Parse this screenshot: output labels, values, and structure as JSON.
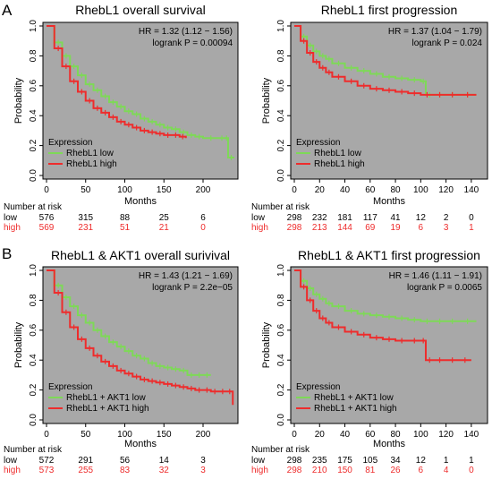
{
  "panels": [
    {
      "letter": "A"
    },
    {
      "letter": "B"
    }
  ],
  "colors": {
    "low": "#7ed957",
    "high": "#ee2c2c",
    "plot_bg": "#a8a8a8"
  },
  "chart_data": [
    {
      "type": "line",
      "title": "RhebL1 overall survival",
      "xlabel": "Months",
      "ylabel": "Probability",
      "xlim": [
        0,
        240
      ],
      "ylim": [
        0,
        1
      ],
      "xticks": [
        0,
        50,
        100,
        150,
        200
      ],
      "yticks": [
        0.0,
        0.2,
        0.4,
        0.6,
        0.8,
        1.0
      ],
      "hr_text": "HR = 1.32 (1.12 − 1.56)",
      "logrank_text": "logrank P = 0.00094",
      "legend_title": "Expression",
      "series": [
        {
          "name": "RhebL1 low",
          "color": "#7ed957",
          "x": [
            0,
            10,
            20,
            30,
            40,
            50,
            60,
            70,
            80,
            90,
            100,
            110,
            120,
            130,
            140,
            150,
            160,
            170,
            180,
            190,
            200,
            220,
            228,
            232,
            240
          ],
          "y": [
            1.0,
            0.89,
            0.8,
            0.73,
            0.67,
            0.61,
            0.57,
            0.53,
            0.49,
            0.46,
            0.43,
            0.41,
            0.38,
            0.36,
            0.34,
            0.32,
            0.31,
            0.29,
            0.27,
            0.26,
            0.25,
            0.25,
            0.25,
            0.12,
            0.12
          ]
        },
        {
          "name": "RhebL1 high",
          "color": "#ee2c2c",
          "x": [
            0,
            10,
            20,
            30,
            40,
            50,
            60,
            70,
            80,
            90,
            100,
            110,
            120,
            130,
            140,
            150,
            160,
            170,
            178
          ],
          "y": [
            1.0,
            0.85,
            0.73,
            0.63,
            0.56,
            0.5,
            0.45,
            0.42,
            0.39,
            0.36,
            0.34,
            0.32,
            0.3,
            0.29,
            0.28,
            0.27,
            0.27,
            0.26,
            0.25
          ]
        }
      ],
      "risk_table": {
        "header": "Number at risk",
        "rows": [
          {
            "label": "low",
            "color": "#000000",
            "values": [
              "576",
              "315",
              "88",
              "25",
              "6"
            ]
          },
          {
            "label": "high",
            "color": "#ee2c2c",
            "values": [
              "569",
              "231",
              "51",
              "21",
              "0"
            ]
          }
        ],
        "times": [
          0,
          50,
          100,
          150,
          200
        ]
      }
    },
    {
      "type": "line",
      "title": "RhebL1 first progression",
      "xlabel": "Months",
      "ylabel": "Probability",
      "xlim": [
        0,
        150
      ],
      "ylim": [
        0,
        1
      ],
      "xticks": [
        0,
        20,
        40,
        60,
        80,
        100,
        120,
        140
      ],
      "yticks": [
        0.0,
        0.2,
        0.4,
        0.6,
        0.8,
        1.0
      ],
      "hr_text": "HR = 1.37 (1.04 − 1.79)",
      "logrank_text": "logrank P = 0.024",
      "legend_title": "Expression",
      "series": [
        {
          "name": "RhebL1 low",
          "color": "#7ed957",
          "x": [
            0,
            5,
            10,
            15,
            20,
            25,
            30,
            40,
            50,
            60,
            70,
            80,
            90,
            100,
            104,
            110,
            120,
            130,
            144
          ],
          "y": [
            1.0,
            0.93,
            0.87,
            0.83,
            0.8,
            0.78,
            0.75,
            0.72,
            0.7,
            0.68,
            0.66,
            0.65,
            0.64,
            0.63,
            0.54,
            0.54,
            0.54,
            0.54,
            0.54
          ]
        },
        {
          "name": "RhebL1 high",
          "color": "#ee2c2c",
          "x": [
            0,
            5,
            10,
            15,
            20,
            25,
            30,
            40,
            50,
            60,
            70,
            80,
            90,
            100,
            110,
            120,
            130,
            144
          ],
          "y": [
            1.0,
            0.9,
            0.82,
            0.76,
            0.72,
            0.69,
            0.66,
            0.63,
            0.6,
            0.58,
            0.57,
            0.56,
            0.55,
            0.54,
            0.54,
            0.54,
            0.54,
            0.54
          ]
        }
      ],
      "risk_table": {
        "header": "Number at risk",
        "rows": [
          {
            "label": "low",
            "color": "#000000",
            "values": [
              "298",
              "232",
              "181",
              "117",
              "41",
              "12",
              "2",
              "0"
            ]
          },
          {
            "label": "high",
            "color": "#ee2c2c",
            "values": [
              "298",
              "213",
              "144",
              "69",
              "19",
              "6",
              "3",
              "1"
            ]
          }
        ],
        "times": [
          0,
          20,
          40,
          60,
          80,
          100,
          120,
          140
        ]
      }
    },
    {
      "type": "line",
      "title": "RhebL1 & AKT1 overall surivival",
      "xlabel": "Months",
      "ylabel": "Probability",
      "xlim": [
        0,
        240
      ],
      "ylim": [
        0,
        1
      ],
      "xticks": [
        0,
        50,
        100,
        150,
        200
      ],
      "yticks": [
        0.0,
        0.2,
        0.4,
        0.6,
        0.8,
        1.0
      ],
      "hr_text": "HR = 1.43 (1.21 − 1.69)",
      "logrank_text": "logrank P = 2.2e−05",
      "legend_title": "Expression",
      "series": [
        {
          "name": "RhebL1 + AKT1 low",
          "color": "#7ed957",
          "x": [
            0,
            10,
            20,
            30,
            40,
            50,
            60,
            70,
            80,
            90,
            100,
            110,
            120,
            130,
            140,
            150,
            160,
            170,
            180,
            190,
            200,
            210
          ],
          "y": [
            1.0,
            0.9,
            0.82,
            0.76,
            0.7,
            0.65,
            0.6,
            0.56,
            0.52,
            0.49,
            0.46,
            0.43,
            0.41,
            0.38,
            0.36,
            0.35,
            0.34,
            0.33,
            0.3,
            0.3,
            0.3,
            0.3
          ]
        },
        {
          "name": "RhebL1 + AKT1 high",
          "color": "#ee2c2c",
          "x": [
            0,
            10,
            20,
            30,
            40,
            50,
            60,
            70,
            80,
            90,
            100,
            110,
            120,
            130,
            140,
            150,
            160,
            170,
            180,
            190,
            200,
            210,
            220,
            230,
            238
          ],
          "y": [
            1.0,
            0.85,
            0.72,
            0.62,
            0.54,
            0.48,
            0.43,
            0.39,
            0.36,
            0.33,
            0.31,
            0.29,
            0.27,
            0.26,
            0.25,
            0.24,
            0.23,
            0.22,
            0.21,
            0.2,
            0.2,
            0.19,
            0.19,
            0.19,
            0.1
          ]
        }
      ],
      "risk_table": {
        "header": "Number at risk",
        "rows": [
          {
            "label": "low",
            "color": "#000000",
            "values": [
              "572",
              "291",
              "56",
              "14",
              "3"
            ]
          },
          {
            "label": "high",
            "color": "#ee2c2c",
            "values": [
              "573",
              "255",
              "83",
              "32",
              "3"
            ]
          }
        ],
        "times": [
          0,
          50,
          100,
          150,
          200
        ]
      }
    },
    {
      "type": "line",
      "title": "RhebL1 & AKT1 first progression",
      "xlabel": "Months",
      "ylabel": "Probability",
      "xlim": [
        0,
        150
      ],
      "ylim": [
        0,
        1
      ],
      "xticks": [
        0,
        20,
        40,
        60,
        80,
        100,
        120,
        140
      ],
      "yticks": [
        0.0,
        0.2,
        0.4,
        0.6,
        0.8,
        1.0
      ],
      "hr_text": "HR = 1.46 (1.11 − 1.91)",
      "logrank_text": "logrank P = 0.0065",
      "legend_title": "Expression",
      "series": [
        {
          "name": "RhebL1 + AKT1 low",
          "color": "#7ed957",
          "x": [
            0,
            5,
            10,
            15,
            20,
            25,
            30,
            40,
            50,
            60,
            70,
            80,
            90,
            100,
            110,
            120,
            130,
            144
          ],
          "y": [
            1.0,
            0.93,
            0.88,
            0.84,
            0.81,
            0.78,
            0.76,
            0.73,
            0.71,
            0.7,
            0.69,
            0.68,
            0.67,
            0.66,
            0.66,
            0.66,
            0.66,
            0.66
          ]
        },
        {
          "name": "RhebL1 + AKT1 high",
          "color": "#ee2c2c",
          "x": [
            0,
            5,
            10,
            15,
            20,
            25,
            30,
            40,
            50,
            60,
            70,
            80,
            90,
            100,
            104,
            110,
            120,
            130,
            140
          ],
          "y": [
            1.0,
            0.89,
            0.8,
            0.73,
            0.68,
            0.65,
            0.62,
            0.59,
            0.57,
            0.55,
            0.54,
            0.53,
            0.53,
            0.53,
            0.4,
            0.4,
            0.4,
            0.4,
            0.4
          ]
        }
      ],
      "risk_table": {
        "header": "Number at risk",
        "rows": [
          {
            "label": "low",
            "color": "#000000",
            "values": [
              "298",
              "235",
              "175",
              "105",
              "34",
              "12",
              "1",
              "1"
            ]
          },
          {
            "label": "high",
            "color": "#ee2c2c",
            "values": [
              "298",
              "210",
              "150",
              "81",
              "26",
              "6",
              "4",
              "0"
            ]
          }
        ],
        "times": [
          0,
          20,
          40,
          60,
          80,
          100,
          120,
          140
        ]
      }
    }
  ]
}
